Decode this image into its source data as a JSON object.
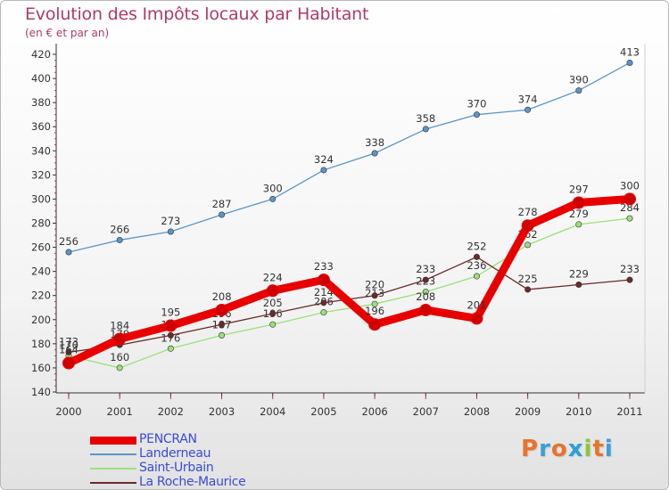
{
  "header": {
    "title": "Evolution des Impôts locaux par Habitant",
    "subtitle": "(en € et par an)"
  },
  "logo": {
    "text": "Proxiti",
    "colors": [
      "#e8742b",
      "#3aa0d8",
      "#e8742b",
      "#2b9fd8",
      "#8cc63f",
      "#e8742b",
      "#3aa0d8"
    ]
  },
  "chart_data": {
    "type": "line",
    "x": [
      "2000",
      "2001",
      "2002",
      "2003",
      "2004",
      "2005",
      "2006",
      "2007",
      "2008",
      "2009",
      "2010",
      "2011"
    ],
    "ylim": [
      140,
      420
    ],
    "yticks": [
      "140",
      "160",
      "180",
      "200",
      "220",
      "240",
      "260",
      "280",
      "300",
      "320",
      "340",
      "360",
      "380",
      "400",
      "420"
    ],
    "grid": false,
    "legend": "bottom-left",
    "series": [
      {
        "name": "Landerneau",
        "color": "#5b95c9",
        "values": [
          256,
          266,
          273,
          287,
          300,
          324,
          338,
          358,
          370,
          374,
          390,
          413
        ],
        "labels": [
          "256",
          "266",
          "273",
          "287",
          "300",
          "324",
          "338",
          "358",
          "370",
          "374",
          "390",
          "413"
        ]
      },
      {
        "name": "Saint-Urbain",
        "color": "#9be07a",
        "values": [
          170,
          160,
          176,
          187,
          196,
          206,
          213,
          223,
          236,
          262,
          279,
          284
        ],
        "labels": [
          "170",
          "160",
          "176",
          "187",
          "196",
          "206",
          "213",
          "223",
          "236",
          "262",
          "279",
          "284"
        ]
      },
      {
        "name": "La Roche-Maurice",
        "color": "#6b2a2a",
        "values": [
          173,
          179,
          187,
          196,
          205,
          214,
          220,
          233,
          252,
          225,
          229,
          233
        ],
        "labels": [
          "173",
          "179",
          "187",
          "196",
          "205",
          "214",
          "220",
          "233",
          "252",
          "225",
          "229",
          "233"
        ]
      },
      {
        "name": "PENCRAN",
        "color": "#e80000",
        "values": [
          164,
          184,
          195,
          208,
          224,
          233,
          196,
          208,
          201,
          278,
          297,
          300
        ],
        "labels": [
          "164",
          "184",
          "195",
          "208",
          "224",
          "233",
          "196",
          "208",
          "201",
          "278",
          "297",
          "300"
        ]
      }
    ]
  },
  "legend_items": [
    {
      "label": "PENCRAN",
      "color": "#e80000"
    },
    {
      "label": "Landerneau",
      "color": "#5b95c9"
    },
    {
      "label": "Saint-Urbain",
      "color": "#9be07a"
    },
    {
      "label": "La Roche-Maurice",
      "color": "#6b2a2a"
    }
  ]
}
